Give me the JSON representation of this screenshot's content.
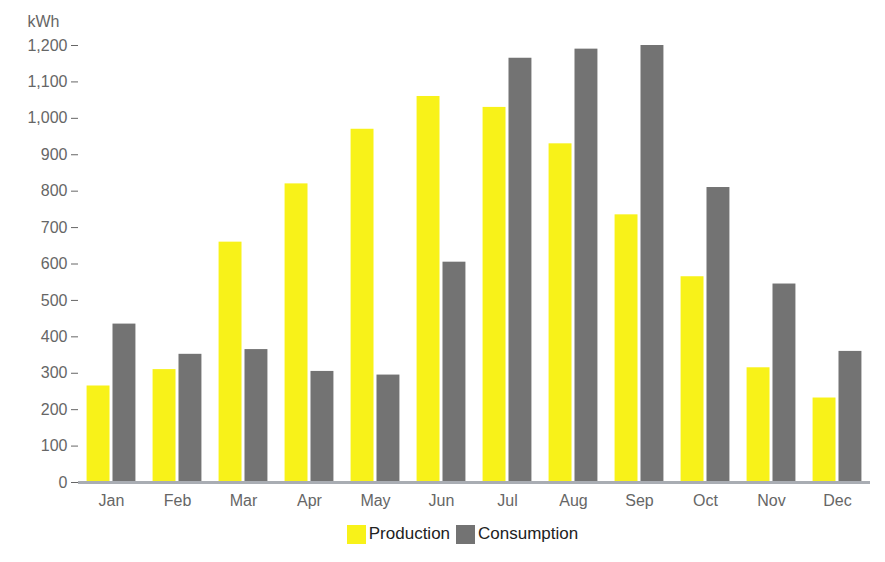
{
  "chart_data": {
    "type": "bar",
    "y_label": "kWh",
    "categories": [
      "Jan",
      "Feb",
      "Mar",
      "Apr",
      "May",
      "Jun",
      "Jul",
      "Aug",
      "Sep",
      "Oct",
      "Nov",
      "Dec"
    ],
    "series": [
      {
        "name": "Production",
        "color": "#f8f219",
        "values": [
          265,
          310,
          660,
          820,
          970,
          1060,
          1030,
          930,
          735,
          565,
          315,
          232
        ]
      },
      {
        "name": "Consumption",
        "color": "#737373",
        "values": [
          435,
          352,
          365,
          305,
          295,
          605,
          1165,
          1190,
          1200,
          810,
          545,
          360
        ]
      }
    ],
    "ylim": [
      0,
      1200
    ],
    "yticks": [
      0,
      100,
      200,
      300,
      400,
      500,
      600,
      700,
      800,
      900,
      {
        "value": 1000,
        "label": "1,000"
      },
      {
        "value": 1100,
        "label": "1,100"
      },
      {
        "value": 1200,
        "label": "1,200"
      }
    ],
    "grid": false,
    "legend": "bottom"
  }
}
